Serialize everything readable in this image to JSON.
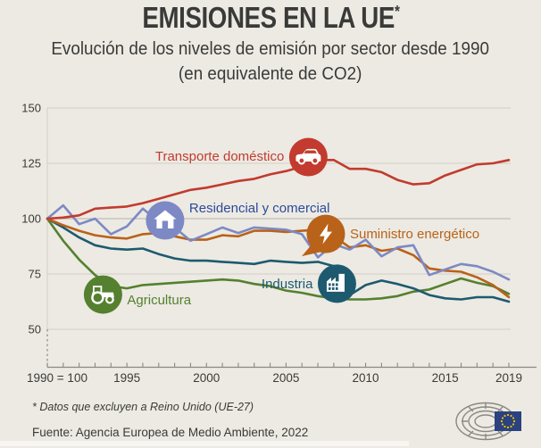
{
  "header": {
    "title": "EMISIONES EN LA UE",
    "title_asterisk": "*",
    "subtitle_line1": "Evolución de los niveles de emisión por sector desde 1990",
    "subtitle_line2": "(en equivalente de CO2)"
  },
  "chart_data": {
    "type": "line",
    "title": "Emisiones en la UE - evolución por sector desde 1990 (1990 = 100)",
    "x_start": 1990,
    "x_end": 2019,
    "x_axis": {
      "baseline_label": "1990 = 100",
      "ticks": [
        {
          "year": 1995,
          "label": "1995"
        },
        {
          "year": 2000,
          "label": "2000"
        },
        {
          "year": 2005,
          "label": "2005"
        },
        {
          "year": 2010,
          "label": "2010"
        },
        {
          "year": 2015,
          "label": "2015"
        },
        {
          "year": 2019,
          "label": "2019"
        }
      ]
    },
    "y_axis": {
      "min": 50,
      "max": 150,
      "ticks": [
        150,
        125,
        100,
        75,
        50
      ],
      "grid": true
    },
    "legend_position": "inline-labels-on-lines",
    "series": [
      {
        "name": "Agricultura",
        "color": "#55802f",
        "label_color": "#55802f",
        "icon": "tractor-icon",
        "icon_year": 1993.5,
        "icon_value": 65.7,
        "label_side": "right",
        "label_dy": 11,
        "values": [
          100,
          90,
          81.5,
          74.5,
          69.5,
          68.5,
          70,
          70.5,
          71,
          71.5,
          72,
          72.5,
          72,
          70.5,
          69.5,
          67.5,
          66.5,
          65,
          64,
          63.5,
          63.5,
          64,
          65,
          67,
          68,
          70.5,
          73,
          71,
          69.5,
          66
        ]
      },
      {
        "name": "Industria",
        "color": "#1e5a6f",
        "label_color": "#1e5a6f",
        "icon": "factory-icon",
        "icon_year": 2008.2,
        "icon_value": 70.6,
        "label_side": "left",
        "label_dy": 5,
        "values": [
          100,
          96,
          91.5,
          88,
          86.5,
          86,
          86.5,
          84,
          82,
          81,
          81,
          80.5,
          80,
          79.5,
          81,
          80.5,
          80,
          80.5,
          78.5,
          65.5,
          70,
          72,
          70.5,
          68.5,
          65.5,
          64,
          63.5,
          64.5,
          64.5,
          62.5
        ]
      },
      {
        "name": "Suministro energético",
        "color": "#b96219",
        "label_color": "#b96219",
        "icon": "lightning-icon",
        "icon_year": 2007.5,
        "icon_value": 93.1,
        "icon_tail": true,
        "label_side": "right",
        "label_dy": 5,
        "values": [
          100,
          97,
          94.5,
          92.5,
          91.5,
          91,
          93,
          93.5,
          92,
          90.5,
          90.5,
          92.5,
          92,
          94.5,
          94.5,
          94,
          94.5,
          95,
          92,
          87,
          88,
          85.5,
          86.5,
          83.5,
          77.5,
          76.5,
          76,
          73.5,
          70,
          64.5
        ]
      },
      {
        "name": "Residencial y comercial",
        "color": "#7d89c4",
        "label_color": "#2d4a9b",
        "icon": "house-icon",
        "icon_year": 1997.4,
        "icon_value": 99.2,
        "label_side": "right",
        "label_dy": -9,
        "values": [
          100,
          106,
          97.5,
          100,
          93,
          96.5,
          104.5,
          98.5,
          96,
          90,
          93,
          96,
          93.5,
          96,
          95.5,
          95,
          93,
          82.5,
          88.5,
          86,
          90.5,
          83,
          87,
          88,
          74.5,
          77,
          79.5,
          78.5,
          76,
          72.5
        ]
      },
      {
        "name": "Transporte doméstico",
        "color": "#c23b2e",
        "label_color": "#c23b2e",
        "icon": "car-icon",
        "icon_year": 2006.4,
        "icon_value": 127.8,
        "label_side": "left",
        "label_dy": 4,
        "values": [
          100,
          100.5,
          101.5,
          104.5,
          105,
          105.5,
          107,
          109,
          111,
          113,
          114,
          115.5,
          117,
          118,
          120,
          121.5,
          123.5,
          126.5,
          126.5,
          122.5,
          122.5,
          121,
          117.5,
          115.5,
          116,
          119.5,
          122,
          124.5,
          125,
          126.5
        ]
      }
    ]
  },
  "footer": {
    "footnote": "* Datos que excluyen a Reino Unido (UE-27)",
    "source": "Fuente: Agencia Europea de Medio Ambiente, 2022"
  },
  "logo": {
    "name": "european-parliament-logo"
  },
  "colors": {
    "background": "#eceae3",
    "text": "#3a3a38",
    "grid": "#cfcdc6",
    "grid_baseline": "#b4b2ab",
    "axis": "#8a8880",
    "eu_flag_blue": "#2a427f",
    "eu_star_yellow": "#f2c500"
  }
}
